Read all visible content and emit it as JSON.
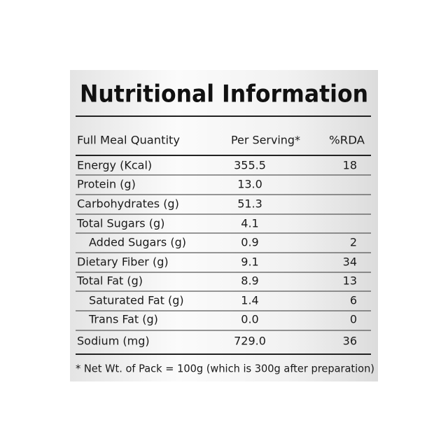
{
  "title": "Nutritional Information",
  "table": {
    "header": [
      "Full Meal Quantity",
      "Per Serving*",
      "%RDA"
    ],
    "rows": [
      {
        "nutrient": "Energy (Kcal)",
        "per_serving": "355.5",
        "rda": "18"
      },
      {
        "nutrient": "Protein (g)",
        "per_serving": "13.0"
      },
      {
        "nutrient": "Carbohydrates (g)",
        "per_serving": "51.3"
      },
      {
        "nutrient": "Total Sugars (g)",
        "per_serving": "4.1"
      },
      {
        "nutrient": "Added Sugars (g)",
        "per_serving": "0.9",
        "rda": "2"
      },
      {
        "nutrient": "Dietary Fiber (g)",
        "per_serving": "9.1",
        "rda": "34"
      },
      {
        "nutrient": "Total Fat (g)",
        "per_serving": "8.9",
        "rda": "13"
      },
      {
        "nutrient": "Saturated Fat (g)",
        "per_serving": "1.4",
        "rda": "6"
      },
      {
        "nutrient": "Trans Fat (g)",
        "per_serving": "0.0",
        "rda": "0"
      },
      {
        "nutrient": "Sodium (mg)",
        "per_serving": "729.0",
        "rda": "36"
      }
    ]
  },
  "footnote": "* Net Wt. of Pack = 100g (which is 300g after preparation)"
}
